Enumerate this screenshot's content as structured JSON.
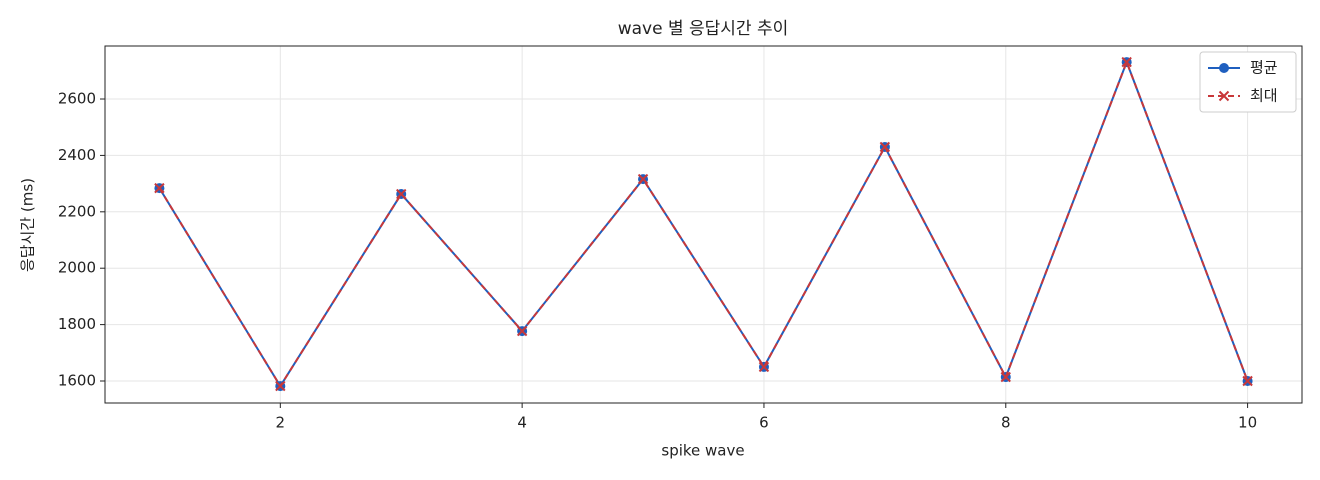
{
  "chart_data": {
    "type": "line",
    "title": "wave 별 응답시간 추이",
    "xlabel": "spike wave",
    "ylabel": "응답시간 (ms)",
    "x": [
      1,
      2,
      3,
      4,
      5,
      6,
      7,
      8,
      9,
      10
    ],
    "series": [
      {
        "name": "평균",
        "color": "#1f5fbf",
        "marker": "o",
        "linestyle": "solid",
        "values": [
          2284,
          1582,
          2263,
          1777,
          2316,
          1650,
          2430,
          1614,
          2731,
          1600
        ]
      },
      {
        "name": "최대",
        "color": "#c8383a",
        "marker": "x",
        "linestyle": "dashed",
        "values": [
          2284,
          1582,
          2263,
          1777,
          2316,
          1650,
          2430,
          1614,
          2731,
          1600
        ]
      }
    ],
    "xlim": [
      0.55,
      10.45
    ],
    "ylim": [
      1522,
      2788
    ],
    "xticks": [
      2,
      4,
      6,
      8,
      10
    ],
    "yticks": [
      1600,
      1800,
      2000,
      2200,
      2400,
      2600
    ],
    "grid": true,
    "legend": "upper right"
  }
}
